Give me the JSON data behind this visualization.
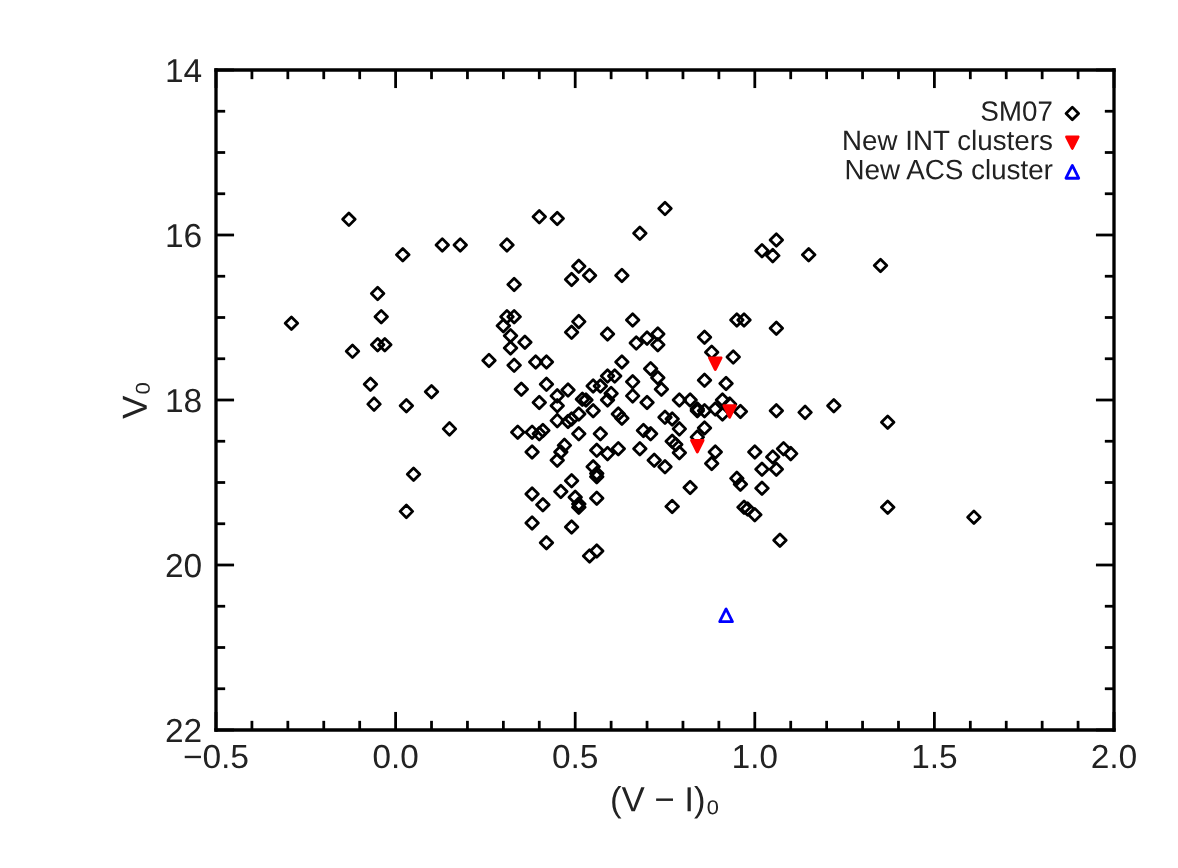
{
  "chart_data": {
    "type": "scatter",
    "xlabel": "(V − I)₀",
    "ylabel": "V₀",
    "xlim": [
      -0.5,
      2.0
    ],
    "ylim": [
      22,
      14
    ],
    "xticks": [
      {
        "value": -0.5,
        "label": "−0.5"
      },
      {
        "value": 0,
        "label": "0.0"
      },
      {
        "value": 0.5,
        "label": "0.5"
      },
      {
        "value": 1.0,
        "label": "1.0"
      },
      {
        "value": 1.5,
        "label": "1.5"
      },
      {
        "value": 2.0,
        "label": "2.0"
      }
    ],
    "yticks": [
      14,
      16,
      18,
      20,
      22
    ],
    "legend": "top right",
    "series": [
      {
        "name": "SM07",
        "color": "#000000",
        "marker": "diamond",
        "x": [
          -0.13,
          0.02,
          0.13,
          0.18,
          0.31,
          -0.05,
          -0.04,
          -0.29,
          -0.05,
          -0.03,
          -0.12,
          0.33,
          0.26,
          -0.07,
          -0.06,
          0.03,
          0.1,
          0.15,
          0.05,
          0.03,
          0.4,
          0.45,
          0.75,
          0.68,
          0.51,
          0.49,
          0.54,
          0.63,
          0.31,
          0.33,
          0.3,
          0.32,
          0.36,
          0.32,
          0.33,
          0.51,
          0.49,
          0.59,
          0.66,
          0.67,
          0.7,
          0.73,
          0.73,
          0.39,
          0.42,
          0.63,
          0.59,
          0.61,
          0.71,
          0.73,
          0.66,
          0.35,
          0.42,
          0.48,
          0.45,
          0.55,
          0.57,
          0.52,
          0.6,
          0.66,
          0.74,
          0.7,
          0.4,
          0.79,
          0.82,
          0.84,
          0.34,
          0.38,
          0.4,
          0.49,
          0.51,
          0.53,
          0.55,
          0.59,
          0.62,
          0.63,
          0.51,
          0.57,
          0.69,
          0.71,
          0.75,
          0.77,
          0.79,
          0.48,
          0.41,
          0.45,
          0.45,
          0.38,
          0.47,
          0.46,
          0.45,
          0.56,
          0.59,
          0.62,
          0.68,
          0.77,
          0.78,
          0.79,
          0.72,
          0.75,
          0.55,
          0.56,
          0.56,
          0.49,
          0.38,
          0.46,
          0.5,
          0.51,
          0.51,
          0.56,
          0.41,
          0.38,
          0.49,
          0.42,
          0.54,
          0.56,
          0.82,
          0.77,
          1.06,
          1.02,
          1.05,
          1.15,
          1.35,
          0.95,
          0.97,
          1.06,
          0.86,
          0.88,
          0.94,
          0.86,
          0.92,
          0.84,
          0.86,
          0.89,
          0.91,
          0.93,
          0.91,
          0.96,
          1.06,
          1.14,
          1.22,
          1.37,
          0.86,
          0.84,
          0.89,
          0.88,
          1.0,
          1.05,
          1.08,
          1.1,
          1.02,
          1.06,
          0.95,
          0.96,
          1.02,
          0.97,
          0.98,
          1.0,
          1.07,
          1.37,
          1.61
        ],
        "values": [
          15.81,
          16.24,
          16.12,
          16.12,
          16.12,
          16.71,
          16.99,
          17.07,
          17.33,
          17.33,
          17.41,
          16.6,
          17.52,
          17.81,
          18.05,
          18.07,
          17.9,
          18.35,
          18.9,
          19.35,
          15.78,
          15.8,
          15.68,
          15.98,
          16.38,
          16.54,
          16.49,
          16.49,
          16.99,
          16.99,
          17.1,
          17.22,
          17.3,
          17.37,
          17.58,
          17.05,
          17.18,
          17.2,
          17.03,
          17.31,
          17.25,
          17.2,
          17.33,
          17.54,
          17.54,
          17.54,
          17.71,
          17.71,
          17.62,
          17.73,
          17.78,
          17.87,
          17.81,
          17.88,
          17.95,
          17.83,
          17.83,
          17.99,
          17.92,
          17.95,
          17.87,
          18.03,
          18.03,
          18.0,
          18.0,
          18.13,
          18.39,
          18.39,
          18.41,
          18.23,
          18.17,
          18.0,
          18.13,
          18.0,
          18.17,
          18.22,
          18.41,
          18.41,
          18.37,
          18.41,
          18.21,
          18.23,
          18.35,
          18.26,
          18.37,
          18.25,
          18.07,
          18.63,
          18.55,
          18.63,
          18.73,
          18.61,
          18.65,
          18.59,
          18.59,
          18.5,
          18.54,
          18.64,
          18.73,
          18.81,
          18.81,
          18.89,
          18.93,
          18.98,
          19.14,
          19.11,
          19.18,
          19.26,
          19.3,
          19.19,
          19.27,
          19.49,
          19.54,
          19.73,
          19.89,
          19.83,
          19.06,
          19.29,
          16.06,
          16.19,
          16.25,
          16.24,
          16.37,
          17.03,
          17.03,
          17.13,
          17.24,
          17.42,
          17.48,
          17.76,
          17.8,
          18.11,
          18.13,
          18.11,
          18.0,
          18.05,
          18.17,
          18.14,
          18.13,
          18.15,
          18.07,
          18.27,
          18.34,
          18.45,
          18.63,
          18.77,
          18.63,
          18.69,
          18.59,
          18.65,
          18.84,
          18.84,
          18.95,
          19.02,
          19.07,
          19.3,
          19.32,
          19.39,
          19.7,
          19.3,
          19.42
        ]
      },
      {
        "name": "New INT clusters",
        "color": "#ff0000",
        "marker": "triangle-down",
        "x": [
          0.89,
          0.84,
          0.93
        ],
        "values": [
          17.56,
          18.56,
          18.14
        ]
      },
      {
        "name": "New ACS cluster",
        "color": "#0000ff",
        "marker": "triangle",
        "x": [
          0.92
        ],
        "values": [
          20.61
        ]
      }
    ]
  }
}
